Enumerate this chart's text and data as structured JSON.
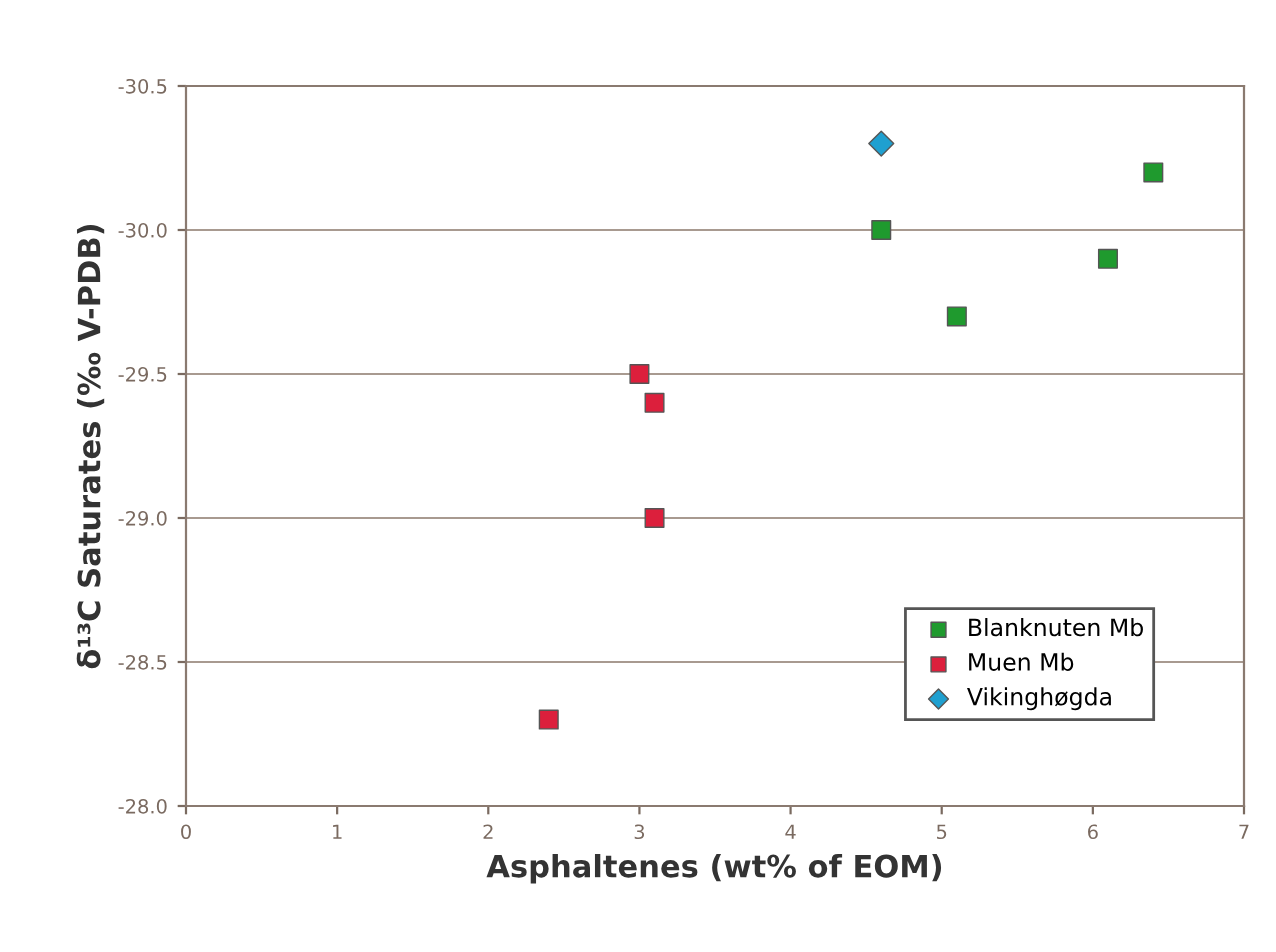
{
  "chart_data": {
    "type": "scatter",
    "xlabel": "Asphaltenes (wt% of EOM)",
    "ylabel": "δ¹³C Saturates (‰ V-PDB)",
    "xlim": [
      0,
      7
    ],
    "xticks": [
      0,
      1,
      2,
      3,
      4,
      5,
      6,
      7
    ],
    "ylim": [
      -28.0,
      -30.5
    ],
    "yticks": [
      {
        "value": -28,
        "label": "-28.0"
      },
      -28.5,
      {
        "value": -29,
        "label": "-29.0"
      },
      -29.5,
      {
        "value": -30,
        "label": "-30.0"
      },
      -30.5
    ],
    "grid": "y",
    "legend": "bottom right",
    "series": [
      {
        "name": "Blanknuten Mb",
        "color": "#1f9a2e",
        "marker": "square",
        "x": [
          4.6,
          6.4,
          6.1,
          5.1
        ],
        "values": [
          -30.0,
          -30.2,
          -29.9,
          -29.7
        ]
      },
      {
        "name": "Muen Mb",
        "color": "#dc1f3c",
        "marker": "square",
        "x": [
          3.0,
          3.1,
          3.1,
          2.4
        ],
        "values": [
          -29.5,
          -29.4,
          -29.0,
          -28.3
        ]
      },
      {
        "name": "Vikinghøgda",
        "color": "#1fa0d0",
        "marker": "diamond",
        "x": [
          4.6
        ],
        "values": [
          -30.3
        ]
      }
    ]
  }
}
